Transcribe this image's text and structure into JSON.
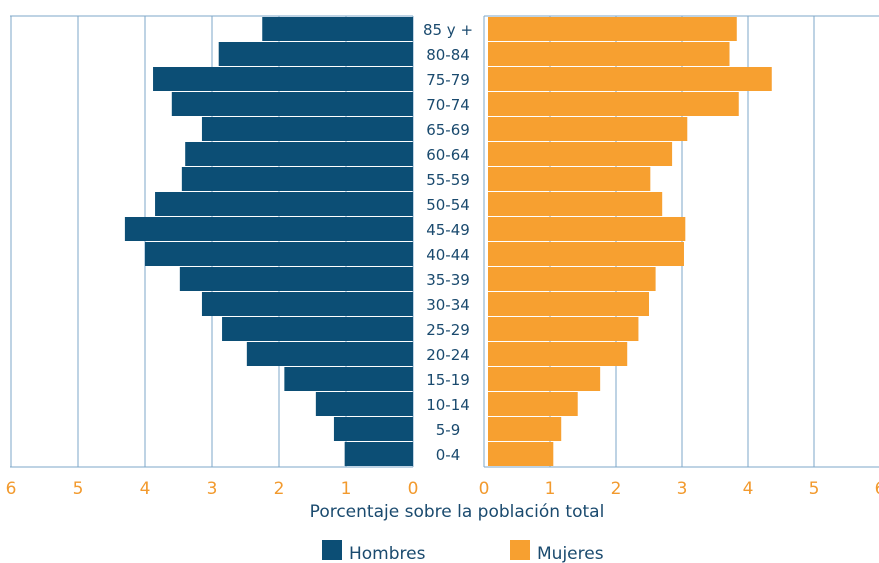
{
  "chart_data": {
    "type": "bar",
    "orientation": "horizontal",
    "categories": [
      "0-4",
      "5-9",
      "10-14",
      "15-19",
      "20-24",
      "25-29",
      "30-34",
      "35-39",
      "40-44",
      "45-49",
      "50-54",
      "55-59",
      "60-64",
      "65-69",
      "70-74",
      "75-79",
      "80-84",
      "85 y +"
    ],
    "series": [
      {
        "name": "Hombres",
        "color": "#0c4e75",
        "values": [
          1.02,
          1.18,
          1.45,
          1.92,
          2.48,
          2.85,
          3.15,
          3.48,
          4.0,
          4.3,
          3.85,
          3.45,
          3.4,
          3.15,
          3.6,
          3.88,
          2.9,
          2.25
        ]
      },
      {
        "name": "Mujeres",
        "color": "#f7a030",
        "values": [
          1.05,
          1.17,
          1.42,
          1.76,
          2.17,
          2.34,
          2.5,
          2.6,
          3.03,
          3.05,
          2.7,
          2.52,
          2.85,
          3.08,
          3.86,
          4.36,
          3.72,
          3.83
        ]
      }
    ],
    "xlabel": "Porcentaje sobre la población total",
    "xlim": [
      0,
      6
    ],
    "ticks": [
      "0",
      "1",
      "2",
      "3",
      "4",
      "5",
      "6"
    ],
    "grid": true,
    "legend_position": "bottom"
  }
}
